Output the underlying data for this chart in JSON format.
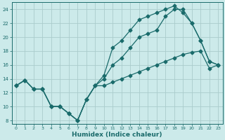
{
  "xlabel": "Humidex (Indice chaleur)",
  "background_color": "#cceaea",
  "grid_color": "#aacccc",
  "line_color": "#1a6b6b",
  "xlim": [
    -0.5,
    23.5
  ],
  "ylim": [
    7.5,
    25.0
  ],
  "xticks": [
    0,
    1,
    2,
    3,
    4,
    5,
    6,
    7,
    8,
    9,
    10,
    11,
    12,
    13,
    14,
    15,
    16,
    17,
    18,
    19,
    20,
    21,
    22,
    23
  ],
  "yticks": [
    8,
    10,
    12,
    14,
    16,
    18,
    20,
    22,
    24
  ],
  "line1_x": [
    0,
    1,
    2,
    3,
    4,
    5,
    6,
    7,
    8,
    9,
    10,
    11,
    12,
    13,
    14,
    15,
    16,
    17,
    18,
    19,
    20,
    21,
    22,
    23
  ],
  "line1_y": [
    13,
    13.8,
    12.5,
    12.5,
    10,
    10,
    9,
    8,
    11,
    13,
    13,
    13.5,
    14,
    14.5,
    15,
    15.5,
    16,
    16.5,
    17,
    17.5,
    17.8,
    18.0,
    15.5,
    16
  ],
  "line2_x": [
    0,
    1,
    2,
    3,
    4,
    5,
    6,
    7,
    8,
    9,
    10,
    11,
    12,
    13,
    14,
    15,
    16,
    17,
    18,
    19,
    20,
    21,
    22,
    23
  ],
  "line2_y": [
    13,
    13.8,
    12.5,
    12.5,
    10,
    10,
    9,
    8,
    11,
    13,
    14,
    16,
    17,
    18.5,
    20,
    20.5,
    21,
    23,
    24,
    24,
    22,
    19.5,
    16.5,
    16
  ],
  "line3_x": [
    0,
    1,
    2,
    3,
    4,
    5,
    6,
    7,
    8,
    9,
    10,
    11,
    12,
    13,
    14,
    15,
    16,
    17,
    18,
    19,
    20,
    21,
    22,
    23
  ],
  "line3_y": [
    13,
    13.8,
    12.5,
    12.5,
    10,
    10,
    9,
    8,
    11,
    13,
    14.5,
    18.5,
    19.5,
    21,
    22.5,
    23,
    23.5,
    24,
    24.5,
    23.5,
    22,
    19.5,
    16.5,
    16
  ]
}
